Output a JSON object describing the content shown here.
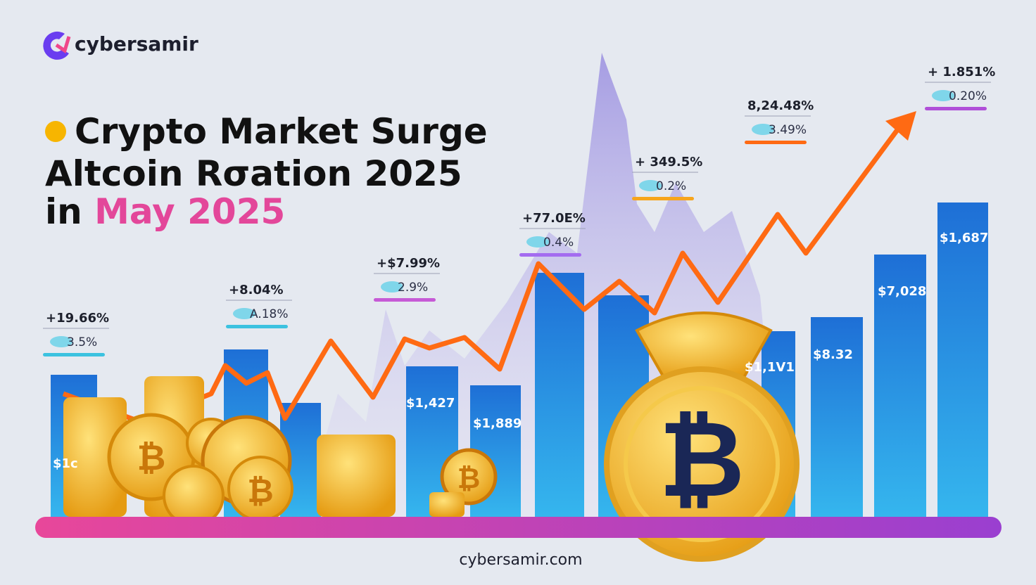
{
  "header": {
    "brand": "cybersamir",
    "title": [
      "Crypto Market Surge",
      "Altcoin Rσation 2025"
    ],
    "subtitle": {
      "prefix": "in",
      "highlight": "May 2025"
    }
  },
  "annotations": [
    {
      "change": "+19.66%",
      "detail": "3.5%"
    },
    {
      "change": "+8.04%",
      "detail": "A.18%"
    },
    {
      "change": "+$7.99%",
      "detail": "2.9%"
    },
    {
      "change": "+77.0E%",
      "detail": "0.4%"
    },
    {
      "change": "+ 349.5%",
      "detail": "0.2%"
    },
    {
      "change": "8,24.48%",
      "detail": "3.49%"
    },
    {
      "change": "+ 1.851%",
      "detail": "0.20%"
    }
  ],
  "bar_labels": [
    "$1c",
    "$1,427",
    "$1,889",
    "$1,1V1",
    "$8.32",
    "$7,028",
    "$1,687"
  ],
  "footer": {
    "url": "cybersamir.com"
  }
}
